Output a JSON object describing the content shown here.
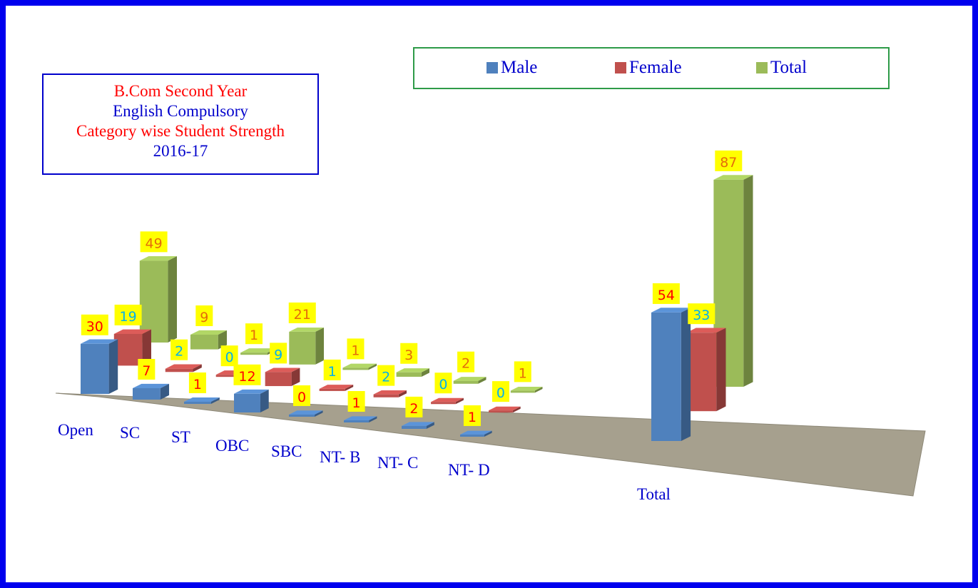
{
  "chart_data": {
    "type": "bar",
    "title": [
      "B.Com Second Year",
      "English Compulsory",
      "Category wise Student Strength",
      "2016-17"
    ],
    "categories": [
      "Open",
      "SC",
      "ST",
      "OBC",
      "SBC",
      "NT- B",
      "NT- C",
      "NT- D",
      "Total"
    ],
    "series": [
      {
        "name": "Male",
        "values": [
          30,
          7,
          1,
          12,
          0,
          1,
          2,
          1,
          54
        ]
      },
      {
        "name": "Female",
        "values": [
          19,
          2,
          0,
          9,
          1,
          2,
          0,
          0,
          33
        ]
      },
      {
        "name": "Total",
        "values": [
          49,
          9,
          1,
          21,
          1,
          3,
          2,
          1,
          87
        ]
      }
    ],
    "legend_position": "top",
    "three_d": true
  },
  "colors": {
    "border": "#0000ee",
    "male": "#4f81bd",
    "female": "#c0504d",
    "total": "#9bbb59",
    "floor": "#a6a08e",
    "label_bg": "#ffff00",
    "male_label": "#ff0000",
    "female_label": "#00b0f0",
    "total_label": "#e46c0a",
    "category_label": "#0000cc",
    "title_red": "#ff0000",
    "title_blue": "#0000cc"
  }
}
